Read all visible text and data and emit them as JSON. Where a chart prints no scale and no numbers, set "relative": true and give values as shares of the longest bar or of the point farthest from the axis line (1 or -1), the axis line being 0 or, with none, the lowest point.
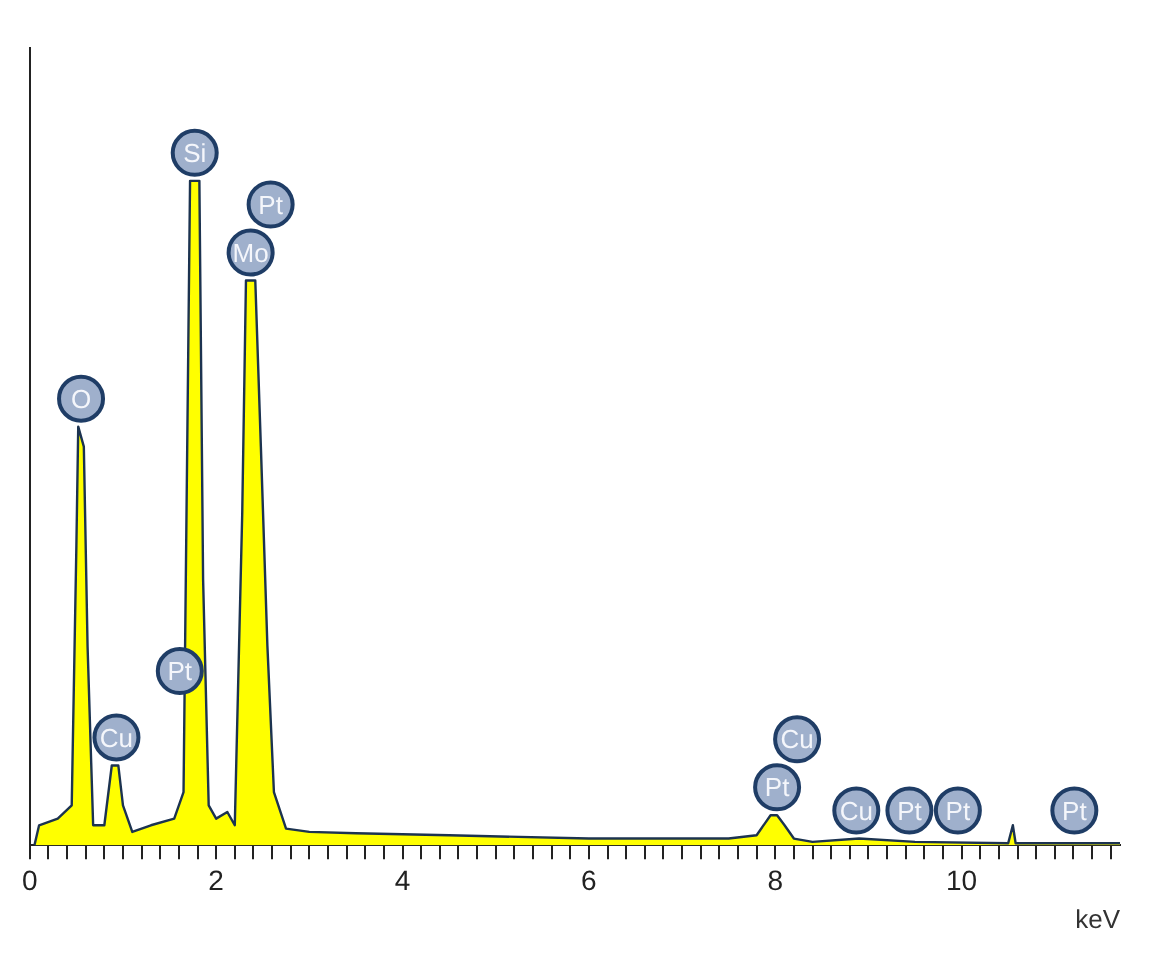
{
  "chart_data": {
    "type": "area",
    "relative": true,
    "xlabel": "keV",
    "xlim": [
      0,
      11.7
    ],
    "xticks": [
      0,
      {
        "value": 0.2,
        "label": null
      },
      {
        "value": 0.4,
        "label": null
      },
      {
        "value": 0.6,
        "label": null
      },
      {
        "value": 0.8,
        "label": null
      },
      {
        "value": 1,
        "label": null
      },
      {
        "value": 1.2,
        "label": null
      },
      {
        "value": 1.4,
        "label": null
      },
      {
        "value": 1.6,
        "label": null
      },
      {
        "value": 1.8,
        "label": null
      },
      2,
      {
        "value": 2.2,
        "label": null
      },
      {
        "value": 2.4,
        "label": null
      },
      {
        "value": 2.6,
        "label": null
      },
      {
        "value": 2.8,
        "label": null
      },
      {
        "value": 3,
        "label": null
      },
      {
        "value": 3.2,
        "label": null
      },
      {
        "value": 3.4,
        "label": null
      },
      {
        "value": 3.6,
        "label": null
      },
      {
        "value": 3.8,
        "label": null
      },
      4,
      {
        "value": 4.2,
        "label": null
      },
      {
        "value": 4.4,
        "label": null
      },
      {
        "value": 4.6,
        "label": null
      },
      {
        "value": 4.8,
        "label": null
      },
      {
        "value": 5,
        "label": null
      },
      {
        "value": 5.2,
        "label": null
      },
      {
        "value": 5.4,
        "label": null
      },
      {
        "value": 5.6,
        "label": null
      },
      {
        "value": 5.8,
        "label": null
      },
      6,
      {
        "value": 6.2,
        "label": null
      },
      {
        "value": 6.4,
        "label": null
      },
      {
        "value": 6.6,
        "label": null
      },
      {
        "value": 6.8,
        "label": null
      },
      {
        "value": 7,
        "label": null
      },
      {
        "value": 7.2,
        "label": null
      },
      {
        "value": 7.4,
        "label": null
      },
      {
        "value": 7.6,
        "label": null
      },
      {
        "value": 7.8,
        "label": null
      },
      8,
      {
        "value": 8.2,
        "label": null
      },
      {
        "value": 8.4,
        "label": null
      },
      {
        "value": 8.6,
        "label": null
      },
      {
        "value": 8.8,
        "label": null
      },
      {
        "value": 9,
        "label": null
      },
      {
        "value": 9.2,
        "label": null
      },
      {
        "value": 9.4,
        "label": null
      },
      {
        "value": 9.6,
        "label": null
      },
      {
        "value": 9.8,
        "label": null
      },
      10,
      {
        "value": 10.2,
        "label": null
      },
      {
        "value": 10.4,
        "label": null
      },
      {
        "value": 10.6,
        "label": null
      },
      {
        "value": 10.8,
        "label": null
      },
      {
        "value": 11,
        "label": null
      },
      {
        "value": 11.2,
        "label": null
      },
      {
        "value": 11.4,
        "label": null
      },
      {
        "value": 11.6,
        "label": null
      }
    ],
    "x": [
      0.05,
      0.1,
      0.3,
      0.45,
      0.5,
      0.52,
      0.58,
      0.62,
      0.68,
      0.8,
      0.88,
      0.95,
      1.0,
      1.1,
      1.3,
      1.55,
      1.65,
      1.72,
      1.82,
      1.86,
      1.92,
      2.0,
      2.12,
      2.2,
      2.28,
      2.32,
      2.42,
      2.48,
      2.55,
      2.62,
      2.75,
      3.0,
      3.5,
      4.5,
      6.0,
      7.5,
      7.8,
      7.95,
      8.02,
      8.1,
      8.2,
      8.4,
      8.9,
      9.5,
      10.5,
      10.55,
      10.58,
      11.0,
      11.7
    ],
    "series": [
      {
        "color": "#ffff00",
        "values": [
          0,
          0.03,
          0.04,
          0.06,
          0.45,
          0.63,
          0.6,
          0.3,
          0.03,
          0.03,
          0.12,
          0.12,
          0.06,
          0.02,
          0.03,
          0.04,
          0.08,
          1.0,
          1.0,
          0.4,
          0.06,
          0.04,
          0.05,
          0.03,
          0.5,
          0.85,
          0.85,
          0.6,
          0.3,
          0.08,
          0.025,
          0.02,
          0.018,
          0.015,
          0.01,
          0.01,
          0.015,
          0.045,
          0.045,
          0.03,
          0.01,
          0.005,
          0.01,
          0.005,
          0.003,
          0.03,
          0.003,
          0.003,
          0.003
        ]
      }
    ],
    "grid": false,
    "legend": false,
    "marker": "none",
    "annotations": [
      {
        "text": "O",
        "x": 0.55,
        "y": 0.63
      },
      {
        "text": "Cu",
        "x": 0.93,
        "y": 0.12
      },
      {
        "text": "Pt",
        "x": 1.61,
        "y": 0.22
      },
      {
        "text": "Si",
        "x": 1.77,
        "y": 1.0
      },
      {
        "text": "Pt",
        "x": 2.37,
        "y": 0.85
      },
      {
        "text": "Mo",
        "x": 2.37,
        "y": 0.85
      },
      {
        "text": "Cu",
        "x": 8.02,
        "y": 0.045
      },
      {
        "text": "Pt",
        "x": 8.02,
        "y": 0.045
      },
      {
        "text": "Cu",
        "x": 8.87,
        "y": 0.01
      },
      {
        "text": "Pt",
        "x": 9.44,
        "y": 0.01
      },
      {
        "text": "Pt",
        "x": 9.96,
        "y": 0.01
      },
      {
        "text": "Pt",
        "x": 11.21,
        "y": 0.01
      }
    ]
  }
}
